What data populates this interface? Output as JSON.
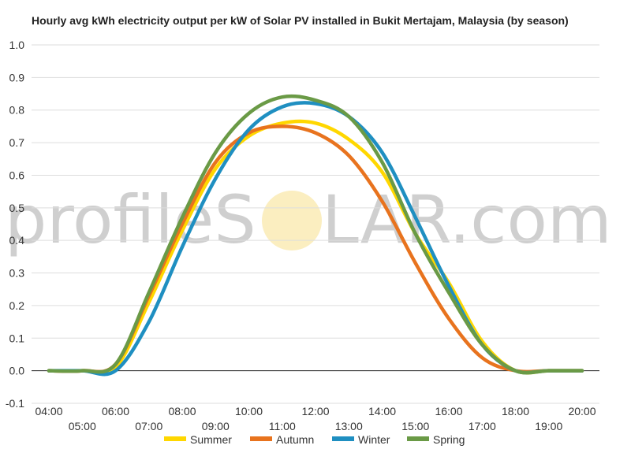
{
  "watermark": {
    "text_left": "profileS",
    "text_right": "LAR.com",
    "sun_color": "#fbeec0",
    "text_color": "#cfcfcf"
  },
  "chart_data": {
    "type": "line",
    "title": "Hourly avg kWh electricity output per kW of Solar PV installed in Bukit Mertajam, Malaysia (by season)",
    "xlabel": "",
    "ylabel": "",
    "x": [
      "04:00",
      "05:00",
      "06:00",
      "07:00",
      "08:00",
      "09:00",
      "10:00",
      "11:00",
      "12:00",
      "13:00",
      "14:00",
      "15:00",
      "16:00",
      "17:00",
      "18:00",
      "19:00",
      "20:00"
    ],
    "ylim": [
      -0.1,
      1.0
    ],
    "yticks": [
      "-0.1",
      "0.0",
      "0.1",
      "0.2",
      "0.3",
      "0.4",
      "0.5",
      "0.6",
      "0.7",
      "0.8",
      "0.9",
      "1.0"
    ],
    "grid": true,
    "legend_position": "bottom",
    "series": [
      {
        "name": "Summer",
        "color": "#ffd700",
        "values": [
          0,
          0,
          0.01,
          0.21,
          0.43,
          0.62,
          0.72,
          0.76,
          0.76,
          0.71,
          0.61,
          0.42,
          0.27,
          0.09,
          0,
          0,
          0
        ]
      },
      {
        "name": "Autumn",
        "color": "#e8731e",
        "values": [
          0,
          0,
          0.02,
          0.23,
          0.45,
          0.64,
          0.73,
          0.75,
          0.73,
          0.66,
          0.52,
          0.33,
          0.16,
          0.04,
          0,
          0,
          0
        ]
      },
      {
        "name": "Winter",
        "color": "#1f8fc1",
        "values": [
          0,
          0,
          0,
          0.15,
          0.38,
          0.59,
          0.74,
          0.81,
          0.82,
          0.78,
          0.67,
          0.47,
          0.26,
          0.08,
          0,
          0,
          0
        ]
      },
      {
        "name": "Spring",
        "color": "#6a9a46",
        "values": [
          0,
          0,
          0.02,
          0.24,
          0.47,
          0.67,
          0.79,
          0.84,
          0.83,
          0.78,
          0.64,
          0.42,
          0.24,
          0.08,
          0,
          0,
          0
        ]
      }
    ]
  }
}
